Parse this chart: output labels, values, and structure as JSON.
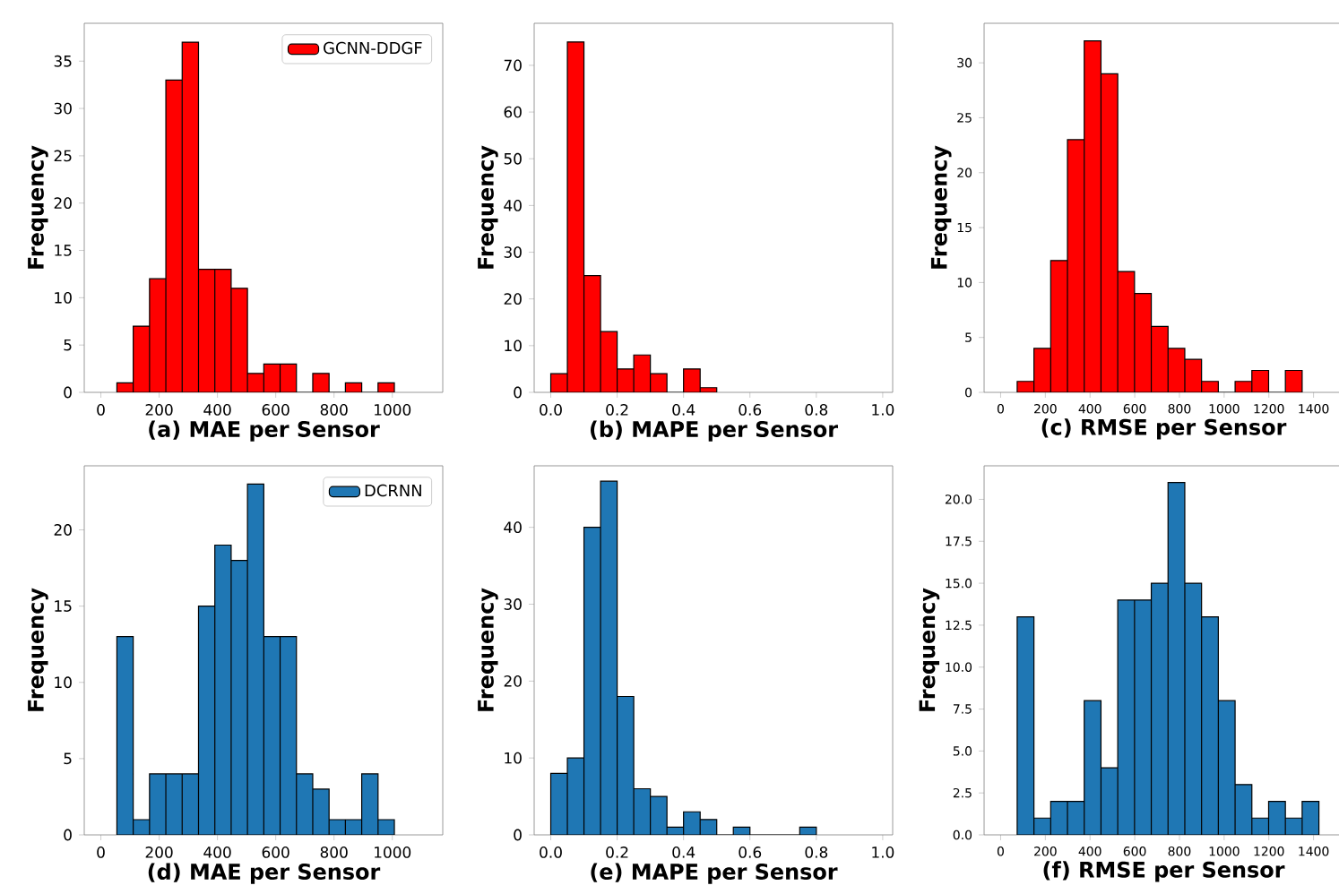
{
  "chart_data": [
    {
      "type": "histogram",
      "xlabel": "(a) MAE per Sensor",
      "ylabel": "Frequency",
      "bins": [
        55,
        111,
        167,
        223,
        279,
        335,
        391,
        447,
        503,
        559,
        615,
        671,
        727,
        783,
        839,
        895,
        951,
        1007
      ],
      "series": [
        {
          "name": "GCNN-DDGF",
          "color": "#ff0000",
          "values": [
            1,
            7,
            12,
            33,
            37,
            13,
            13,
            11,
            2,
            3,
            3,
            0,
            2,
            0,
            1,
            0,
            1
          ]
        }
      ],
      "xlim": [
        -57,
        1173
      ],
      "ylim": [
        0,
        39
      ],
      "xticks": [
        0,
        200,
        400,
        600,
        800,
        1000
      ],
      "yticks": [
        0,
        5,
        10,
        15,
        20,
        25,
        30,
        35
      ],
      "legend": "top right"
    },
    {
      "type": "histogram",
      "xlabel": "(b) MAPE per Sensor",
      "ylabel": "Frequency",
      "bins": [
        0,
        0.05,
        0.1,
        0.15,
        0.2,
        0.25,
        0.3,
        0.35,
        0.4,
        0.45,
        0.5
      ],
      "series": [
        {
          "color": "#ff0000",
          "values": [
            4,
            75,
            25,
            13,
            5,
            8,
            4,
            0,
            5,
            1
          ]
        }
      ],
      "xlim": [
        -0.05,
        1.03
      ],
      "ylim": [
        0,
        79
      ],
      "xticks": [
        {
          "value": 0,
          "label": "0.0"
        },
        {
          "value": 0.2,
          "label": "0.2"
        },
        {
          "value": 0.4,
          "label": "0.4"
        },
        {
          "value": 0.6,
          "label": "0.6"
        },
        {
          "value": 0.8,
          "label": "0.8"
        },
        {
          "value": 1,
          "label": "1.0"
        }
      ],
      "yticks": [
        0,
        10,
        20,
        30,
        40,
        50,
        60,
        70
      ]
    },
    {
      "type": "histogram",
      "xlabel": "(c) RMSE per Sensor",
      "ylabel": "Frequency",
      "bins": [
        74,
        149,
        224,
        299,
        374,
        449,
        524,
        599,
        674,
        749,
        824,
        899,
        974,
        1049,
        1124,
        1199,
        1274,
        1349
      ],
      "series": [
        {
          "color": "#ff0000",
          "values": [
            1,
            4,
            12,
            23,
            32,
            29,
            11,
            9,
            6,
            4,
            3,
            1,
            0,
            1,
            2,
            0,
            2
          ]
        }
      ],
      "xlim": [
        -74,
        1530
      ],
      "ylim": [
        0,
        33.6
      ],
      "xticks": [
        0,
        200,
        400,
        600,
        800,
        1000,
        1200,
        1400
      ],
      "yticks": [
        0,
        5,
        10,
        15,
        20,
        25,
        30
      ]
    },
    {
      "type": "histogram",
      "xlabel": "(d) MAE per Sensor",
      "ylabel": "Frequency",
      "bins": [
        55,
        111,
        167,
        223,
        279,
        335,
        391,
        447,
        503,
        559,
        615,
        671,
        727,
        783,
        839,
        895,
        951,
        1007
      ],
      "series": [
        {
          "name": "DCRNN",
          "color": "#1f77b4",
          "values": [
            13,
            1,
            4,
            4,
            4,
            15,
            19,
            18,
            23,
            13,
            13,
            4,
            3,
            1,
            1,
            4,
            1
          ]
        }
      ],
      "xlim": [
        -57,
        1173
      ],
      "ylim": [
        0,
        24.2
      ],
      "xticks": [
        0,
        200,
        400,
        600,
        800,
        1000
      ],
      "yticks": [
        0,
        5,
        10,
        15,
        20
      ],
      "legend": "top right"
    },
    {
      "type": "histogram",
      "xlabel": "(e) MAPE per Sensor",
      "ylabel": "Frequency",
      "bins": [
        0,
        0.05,
        0.1,
        0.15,
        0.2,
        0.25,
        0.3,
        0.35,
        0.4,
        0.45,
        0.5,
        0.55,
        0.6,
        0.65,
        0.7,
        0.75,
        0.8
      ],
      "series": [
        {
          "color": "#1f77b4",
          "values": [
            8,
            10,
            40,
            46,
            18,
            6,
            5,
            1,
            3,
            2,
            0,
            1,
            0,
            0,
            0,
            1
          ]
        }
      ],
      "xlim": [
        -0.05,
        1.03
      ],
      "ylim": [
        0,
        48
      ],
      "xticks": [
        {
          "value": 0,
          "label": "0.0"
        },
        {
          "value": 0.2,
          "label": "0.2"
        },
        {
          "value": 0.4,
          "label": "0.4"
        },
        {
          "value": 0.6,
          "label": "0.6"
        },
        {
          "value": 0.8,
          "label": "0.8"
        },
        {
          "value": 1,
          "label": "1.0"
        }
      ],
      "yticks": [
        0,
        10,
        20,
        30,
        40
      ]
    },
    {
      "type": "histogram",
      "xlabel": "(f) RMSE per Sensor",
      "ylabel": "Frequency",
      "bins": [
        74,
        149,
        224,
        299,
        374,
        449,
        524,
        599,
        674,
        749,
        824,
        899,
        974,
        1049,
        1124,
        1199,
        1274,
        1349,
        1424
      ],
      "series": [
        {
          "color": "#1f77b4",
          "values": [
            13,
            1,
            2,
            2,
            8,
            4,
            14,
            14,
            15,
            21,
            15,
            13,
            8,
            3,
            1,
            2,
            1,
            2
          ]
        }
      ],
      "xlim": [
        -74,
        1530
      ],
      "ylim": [
        0,
        22
      ],
      "xticks": [
        0,
        200,
        400,
        600,
        800,
        1000,
        1200,
        1400
      ],
      "yticks": [
        {
          "value": 0,
          "label": "0.0"
        },
        {
          "value": 2.5,
          "label": "2.5"
        },
        {
          "value": 5,
          "label": "5.0"
        },
        {
          "value": 7.5,
          "label": "7.5"
        },
        {
          "value": 10,
          "label": "10.0"
        },
        {
          "value": 12.5,
          "label": "12.5"
        },
        {
          "value": 15,
          "label": "15.0"
        },
        {
          "value": 17.5,
          "label": "17.5"
        },
        {
          "value": 20,
          "label": "20.0"
        }
      ]
    }
  ]
}
